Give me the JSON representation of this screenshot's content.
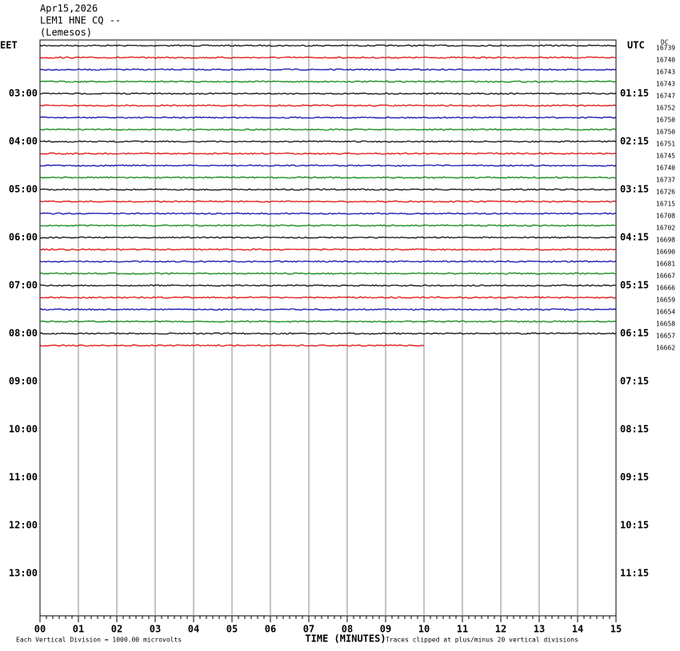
{
  "header": {
    "date": "Apr15,2026",
    "station": "LEM1 HNE CQ --",
    "location": "(Lemesos)"
  },
  "left_zone": "EET",
  "right_zone": "UTC",
  "dc_heading": "DC",
  "left_times": [
    "03:00",
    "04:00",
    "05:00",
    "06:00",
    "07:00",
    "08:00",
    "09:00",
    "10:00",
    "11:00",
    "12:00",
    "13:00"
  ],
  "right_times": [
    "01:15",
    "02:15",
    "03:15",
    "04:15",
    "05:15",
    "06:15",
    "07:15",
    "08:15",
    "09:15",
    "10:15",
    "11:15"
  ],
  "trace_colors": [
    "#000000",
    "#dd0000",
    "#0000aa",
    "#008000"
  ],
  "dc_values": [
    16739,
    16740,
    16743,
    16743,
    16747,
    16752,
    16750,
    16750,
    16751,
    16745,
    16740,
    16737,
    16726,
    16715,
    16708,
    16702,
    16698,
    16690,
    16681,
    16667,
    16666,
    16659,
    16654,
    16658,
    16657,
    16662
  ],
  "minute_labels": [
    "00",
    "01",
    "02",
    "03",
    "04",
    "05",
    "06",
    "07",
    "08",
    "09",
    "10",
    "11",
    "12",
    "13",
    "14",
    "15"
  ],
  "x_title": "TIME (MINUTES)",
  "footer_left": "Each Vertical Division = 1000.00 microvolts",
  "footer_right": "Traces clipped at plus/minus 20 vertical divisions"
}
